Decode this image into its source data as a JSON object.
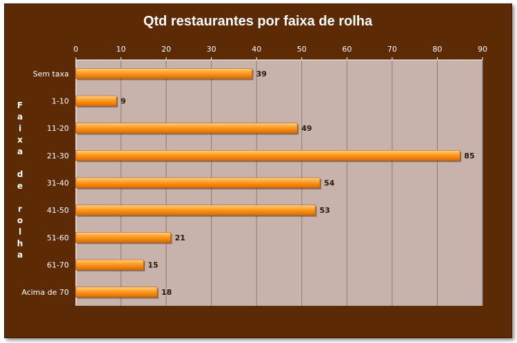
{
  "chart_data": {
    "type": "bar",
    "orientation": "horizontal",
    "title": "Qtd restaurantes por faixa de rolha",
    "xlabel": "",
    "ylabel": "Faixa de rolha",
    "categories": [
      "Sem taxa",
      "1-10",
      "11-20",
      "21-30",
      "31-40",
      "41-50",
      "51-60",
      "61-70",
      "Acima de 70"
    ],
    "values": [
      39,
      9,
      49,
      85,
      54,
      53,
      21,
      15,
      18
    ],
    "xlim": [
      0,
      90
    ],
    "xticks": [
      0,
      10,
      20,
      30,
      40,
      50,
      60,
      70,
      80,
      90
    ],
    "x_axis_position": "top",
    "grid": true,
    "legend": "none",
    "colors": {
      "background": "#5c2a04",
      "plot_area": "#c7b3ab",
      "bar_light": "#ffd08a",
      "bar_mid": "#ff9a1e",
      "bar_dark": "#d96a00",
      "text": "#ffffff",
      "data_label": "#2b1600"
    }
  }
}
